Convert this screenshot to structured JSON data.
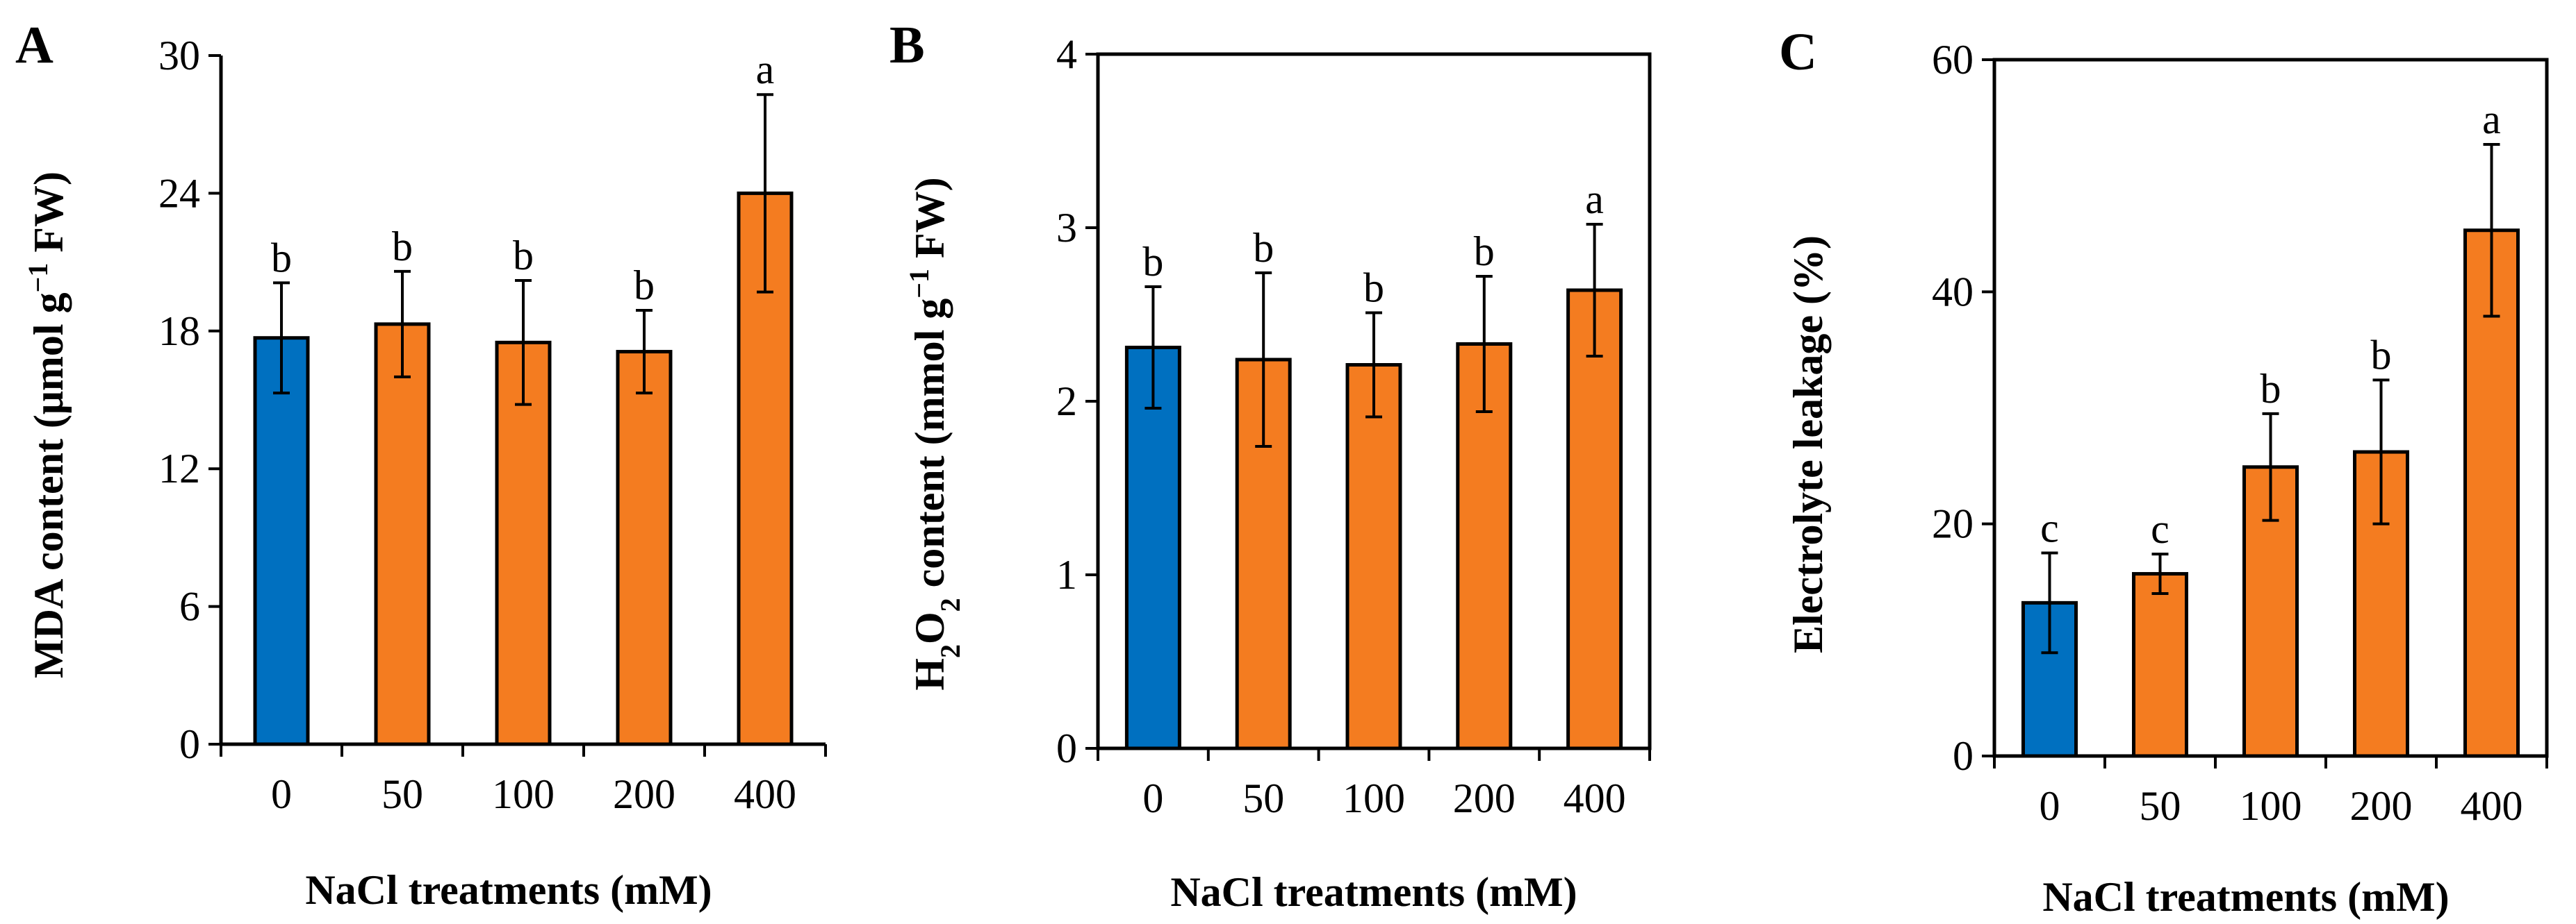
{
  "colors": {
    "control": "#0070C0",
    "treatment": "#F47C20",
    "axis": "#000000"
  },
  "chart_data": [
    {
      "panel": "A",
      "type": "bar",
      "categories": [
        "0",
        "50",
        "100",
        "200",
        "400"
      ],
      "values": [
        17.7,
        18.3,
        17.5,
        17.1,
        24.0
      ],
      "errors": [
        2.4,
        2.3,
        2.7,
        1.8,
        4.3
      ],
      "significance": [
        "b",
        "b",
        "b",
        "b",
        "a"
      ],
      "xlabel": "NaCl treatments (mM)",
      "ylabel": {
        "main": "MDA content (μmol g",
        "sup": "−1",
        "rest": " FW)"
      },
      "ylim": [
        0,
        30
      ],
      "yticks": [
        "0",
        "6",
        "12",
        "18",
        "24",
        "30"
      ],
      "framed": false
    },
    {
      "panel": "B",
      "type": "bar",
      "categories": [
        "0",
        "50",
        "100",
        "200",
        "400"
      ],
      "values": [
        2.31,
        2.24,
        2.21,
        2.33,
        2.64
      ],
      "errors": [
        0.35,
        0.5,
        0.3,
        0.39,
        0.38
      ],
      "significance": [
        "b",
        "b",
        "b",
        "b",
        "a"
      ],
      "xlabel": "NaCl treatments (mM)",
      "ylabel": {
        "pre": "H",
        "sub1": "2",
        "mid": "O",
        "sub2": "2",
        "main": " content (mmol g",
        "sup": "−1",
        "rest": " FW)"
      },
      "ylim": [
        0,
        4
      ],
      "yticks": [
        "0",
        "1",
        "2",
        "3",
        "4"
      ],
      "framed": true
    },
    {
      "panel": "C",
      "type": "bar",
      "categories": [
        "0",
        "50",
        "100",
        "200",
        "400"
      ],
      "values": [
        13.2,
        15.7,
        24.9,
        26.2,
        45.3
      ],
      "errors": [
        4.3,
        1.7,
        4.6,
        6.2,
        7.4
      ],
      "significance": [
        "c",
        "c",
        "b",
        "b",
        "a"
      ],
      "xlabel": "NaCl treatments (mM)",
      "ylabel": {
        "main": "Electrolyte leakage (%)"
      },
      "ylim": [
        0,
        60
      ],
      "yticks": [
        "0",
        "20",
        "40",
        "60"
      ],
      "framed": true
    }
  ]
}
